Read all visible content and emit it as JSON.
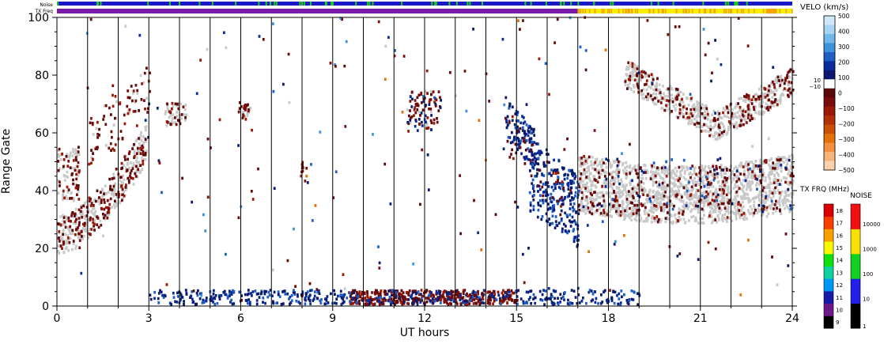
{
  "strips": {
    "noise_label": "Noise",
    "txfreq_label": "TX Freq"
  },
  "chart_data": {
    "type": "scatter",
    "subtype": "range-time intensity plot",
    "xlabel": "UT hours",
    "ylabel": "Range Gate",
    "xlim": [
      0,
      24
    ],
    "ylim": [
      0,
      100
    ],
    "x_ticks": [
      "0",
      "3",
      "6",
      "9",
      "12",
      "15",
      "18",
      "21",
      "24"
    ],
    "y_ticks": [
      "0",
      "20",
      "40",
      "60",
      "80",
      "100"
    ],
    "hour_boundaries": [
      1,
      2,
      3,
      4,
      5,
      6,
      7,
      8,
      9,
      10,
      11,
      12,
      13,
      14,
      15,
      16,
      17,
      18,
      19,
      20,
      21,
      22,
      23
    ],
    "grid": "vertical lines at each UT hour",
    "ground_scatter_color": "#c8c8c8",
    "velocity_scale": {
      "title": "VELO (km/s)",
      "labels": [
        "500",
        "400",
        "300",
        "200",
        "100",
        "0",
        "−100",
        "−200",
        "−300",
        "−400",
        "−500"
      ],
      "ground_labels": [
        "10",
        "−10"
      ],
      "colors": [
        "#cfe8f8",
        "#a9d4f2",
        "#72b8ec",
        "#3f93dc",
        "#1f5fc4",
        "#0a2c9a",
        "#0c1870",
        "#5a0808",
        "#7a0c0c",
        "#9a1a08",
        "#b23006",
        "#cc5004",
        "#e37008",
        "#f39040",
        "#f8b478",
        "#fbd2ac"
      ]
    },
    "txfreq_scale": {
      "title": "TX FRQ (MHz)",
      "labels": [
        "9",
        "10",
        "11",
        "12",
        "13",
        "14",
        "15",
        "16",
        "17",
        "18"
      ],
      "colors": [
        "#000000",
        "#6a1a8a",
        "#1a1aa8",
        "#0098f8",
        "#10d0a0",
        "#10e010",
        "#f8f800",
        "#f8a000",
        "#f84000",
        "#d80000"
      ]
    },
    "noise_scale": {
      "title": "NOISE",
      "labels": [
        "1",
        "10",
        "100",
        "1000",
        "10000"
      ],
      "colors": [
        "#000000",
        "#2020e8",
        "#10d020",
        "#f8e000",
        "#f01010"
      ]
    },
    "noise_strip": {
      "base_color": "#1818c8",
      "flicker_color": "#18d018"
    },
    "txfreq_strip": {
      "segments": [
        {
          "start_ut": 0,
          "end_ut": 17,
          "color": "#7a18a8"
        },
        {
          "start_ut": 17,
          "end_ut": 24,
          "color": "#f8f000"
        }
      ]
    },
    "scatter_regions": [
      {
        "name": "early-morning arc",
        "x_range": [
          0.0,
          2.9
        ],
        "gate_range": [
          20,
          80
        ],
        "contents": "ground scatter band rising from gate 22 to 60, negative velocities (-100 to -300 km/s) along it"
      },
      {
        "name": "03-04 UT patch",
        "x_range": [
          3.5,
          4.2
        ],
        "gate_range": [
          60,
          72
        ],
        "contents": "ground scatter and mixed velocities"
      },
      {
        "name": "06 UT patch",
        "x_range": [
          5.9,
          6.3
        ],
        "gate_range": [
          62,
          72
        ],
        "contents": "negative velocities"
      },
      {
        "name": "08 UT patch",
        "x_range": [
          7.9,
          8.2
        ],
        "gate_range": [
          42,
          52
        ],
        "contents": "negative velocities"
      },
      {
        "name": "11.5-12.5 UT patch",
        "x_range": [
          11.4,
          12.5
        ],
        "gate_range": [
          56,
          80
        ],
        "contents": "mixed positive and negative velocities"
      },
      {
        "name": "14.5-17 UT descending band",
        "x_range": [
          14.5,
          17.0
        ],
        "gate_range": [
          15,
          75
        ],
        "contents": "positive velocities (100-300 km/s) descending from gate 70 to gate 20"
      },
      {
        "name": "17-24 UT ground scatter band",
        "x_range": [
          17.0,
          24.0
        ],
        "gate_range": [
          25,
          58
        ],
        "contents": "broad ground scatter band centred near gate 40, negative velocities embedded"
      },
      {
        "name": "18.5-24 UT upper band",
        "x_range": [
          18.5,
          24.0
        ],
        "gate_range": [
          58,
          85
        ],
        "contents": "ground scatter and negative velocities descending then rising"
      },
      {
        "name": "near-range echoes",
        "x_range": [
          3.0,
          19.0
        ],
        "gate_range": [
          0,
          8
        ],
        "contents": "dense near-range echoes, negative velocities 9-15 UT, positive velocities elsewhere"
      }
    ]
  }
}
